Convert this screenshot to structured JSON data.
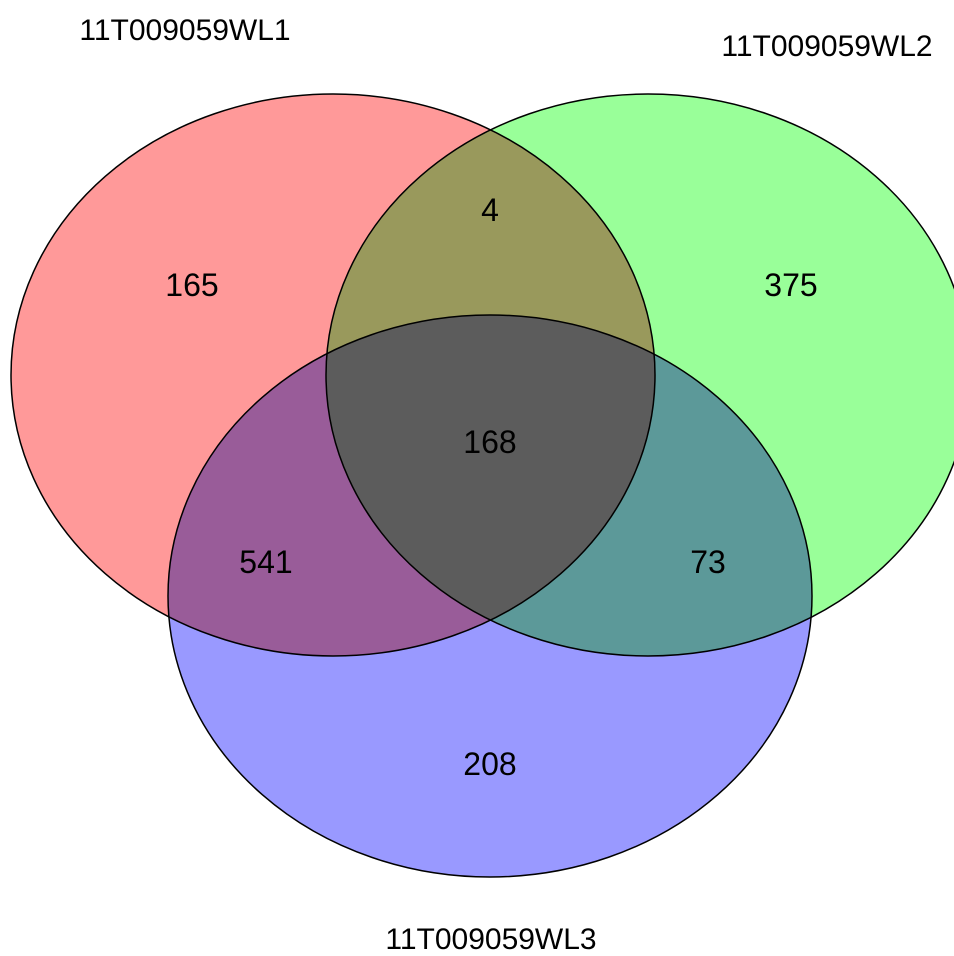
{
  "sets": [
    {
      "label": "11T009059WL1",
      "color": "#ff9999"
    },
    {
      "label": "11T009059WL2",
      "color": "#99ff99"
    },
    {
      "label": "11T009059WL3",
      "color": "#9999ff"
    }
  ],
  "regions": {
    "only_1": "165",
    "only_2": "375",
    "only_3": "208",
    "set_1_2": "4",
    "set_1_3": "541",
    "set_2_3": "73",
    "set_1_2_3": "168"
  },
  "styles": {
    "outline_color": "#000000",
    "circle_opacity": 0.7
  }
}
